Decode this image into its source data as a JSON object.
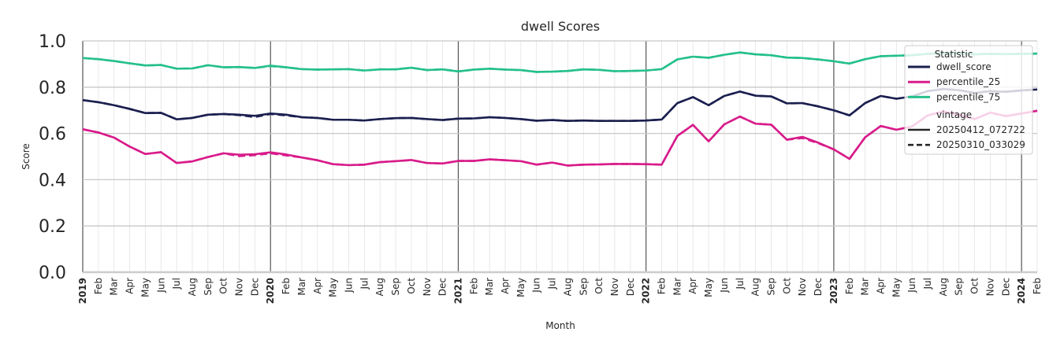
{
  "chart_data": {
    "type": "line",
    "title": "dwell Scores",
    "xlabel": "Month",
    "ylabel": "Score",
    "ylim": [
      0.0,
      1.0
    ],
    "yticks": [
      "0.0",
      "0.2",
      "0.4",
      "0.6",
      "0.8",
      "1.0"
    ],
    "x_range": [
      "2019-01",
      "2024-02"
    ],
    "grid": true,
    "legend_position": "top-right",
    "x": [
      "2019-01",
      "2019-02",
      "2019-03",
      "2019-04",
      "2019-05",
      "2019-06",
      "2019-07",
      "2019-08",
      "2019-09",
      "2019-10",
      "2019-11",
      "2019-12",
      "2020-01",
      "2020-02",
      "2020-03",
      "2020-04",
      "2020-05",
      "2020-06",
      "2020-07",
      "2020-08",
      "2020-09",
      "2020-10",
      "2020-11",
      "2020-12",
      "2021-01",
      "2021-02",
      "2021-03",
      "2021-04",
      "2021-05",
      "2021-06",
      "2021-07",
      "2021-08",
      "2021-09",
      "2021-10",
      "2021-11",
      "2021-12",
      "2022-01",
      "2022-02",
      "2022-03",
      "2022-04",
      "2022-05",
      "2022-06",
      "2022-07",
      "2022-08",
      "2022-09",
      "2022-10",
      "2022-11",
      "2022-12",
      "2023-01",
      "2023-02",
      "2023-03",
      "2023-04",
      "2023-05",
      "2023-06",
      "2023-07",
      "2023-08",
      "2023-09",
      "2023-10",
      "2023-11",
      "2023-12",
      "2024-01",
      "2024-02"
    ],
    "x_tick_labels": [
      "2019",
      "Feb",
      "Mar",
      "Apr",
      "May",
      "Jun",
      "Jul",
      "Aug",
      "Sep",
      "Oct",
      "Nov",
      "Dec",
      "2020",
      "Feb",
      "Mar",
      "Apr",
      "May",
      "Jun",
      "Jul",
      "Aug",
      "Sep",
      "Oct",
      "Nov",
      "Dec",
      "2021",
      "Feb",
      "Mar",
      "Apr",
      "May",
      "Jun",
      "Jul",
      "Aug",
      "Sep",
      "Oct",
      "Nov",
      "Dec",
      "2022",
      "Feb",
      "Mar",
      "Apr",
      "May",
      "Jun",
      "Jul",
      "Aug",
      "Sep",
      "Oct",
      "Nov",
      "Dec",
      "2023",
      "Feb",
      "Mar",
      "Apr",
      "May",
      "Jun",
      "Jul",
      "Aug",
      "Sep",
      "Oct",
      "Nov",
      "Dec",
      "2024",
      "Feb"
    ],
    "legend": {
      "statistic_header": "Statistic",
      "vintage_header": "vintage",
      "statistics": [
        {
          "name": "dwell_score",
          "color": "#1b1f4f"
        },
        {
          "name": "percentile_25",
          "color": "#d81b8a"
        },
        {
          "name": "percentile_75",
          "color": "#25c08a"
        }
      ],
      "vintages": [
        {
          "name": "20250412_072722",
          "dash": "solid"
        },
        {
          "name": "20250310_033029",
          "dash": "dashed"
        }
      ]
    },
    "series": [
      {
        "statistic": "percentile_75",
        "vintage": "20250412_072722",
        "color": "#25c08a",
        "dash": "solid",
        "values": [
          0.926,
          0.921,
          0.913,
          0.903,
          0.894,
          0.896,
          0.88,
          0.881,
          0.895,
          0.886,
          0.887,
          0.883,
          0.893,
          0.886,
          0.878,
          0.876,
          0.877,
          0.878,
          0.872,
          0.877,
          0.877,
          0.884,
          0.874,
          0.877,
          0.868,
          0.876,
          0.88,
          0.876,
          0.874,
          0.866,
          0.867,
          0.87,
          0.877,
          0.875,
          0.869,
          0.87,
          0.872,
          0.878,
          0.92,
          0.932,
          0.927,
          0.94,
          0.95,
          0.942,
          0.938,
          0.928,
          0.926,
          0.92,
          0.912,
          0.902,
          0.921,
          0.934,
          0.936,
          0.938,
          0.944,
          0.947,
          0.946,
          0.942,
          0.944,
          0.943,
          0.944,
          0.945
        ]
      },
      {
        "statistic": "dwell_score",
        "vintage": "20250412_072722",
        "color": "#1b1f4f",
        "dash": "solid",
        "values": [
          0.744,
          0.735,
          0.722,
          0.706,
          0.688,
          0.689,
          0.661,
          0.667,
          0.681,
          0.684,
          0.681,
          0.676,
          0.686,
          0.681,
          0.67,
          0.667,
          0.659,
          0.659,
          0.656,
          0.662,
          0.666,
          0.667,
          0.662,
          0.658,
          0.664,
          0.665,
          0.67,
          0.667,
          0.662,
          0.655,
          0.658,
          0.654,
          0.656,
          0.654,
          0.654,
          0.654,
          0.656,
          0.66,
          0.731,
          0.757,
          0.722,
          0.762,
          0.781,
          0.763,
          0.76,
          0.73,
          0.731,
          0.717,
          0.7,
          0.678,
          0.731,
          0.762,
          0.75,
          0.76,
          0.783,
          0.792,
          0.787,
          0.775,
          0.783,
          0.78,
          0.786,
          0.79
        ]
      },
      {
        "statistic": "percentile_25",
        "vintage": "20250412_072722",
        "color": "#d81b8a",
        "dash": "solid",
        "values": [
          0.618,
          0.604,
          0.582,
          0.543,
          0.511,
          0.519,
          0.472,
          0.479,
          0.498,
          0.514,
          0.508,
          0.51,
          0.518,
          0.509,
          0.496,
          0.484,
          0.467,
          0.463,
          0.465,
          0.476,
          0.48,
          0.485,
          0.472,
          0.47,
          0.481,
          0.481,
          0.488,
          0.484,
          0.48,
          0.465,
          0.474,
          0.461,
          0.465,
          0.466,
          0.468,
          0.468,
          0.467,
          0.465,
          0.589,
          0.637,
          0.566,
          0.639,
          0.673,
          0.642,
          0.638,
          0.573,
          0.585,
          0.56,
          0.531,
          0.49,
          0.583,
          0.632,
          0.616,
          0.63,
          0.678,
          0.695,
          0.681,
          0.662,
          0.69,
          0.675,
          0.686,
          0.698
        ]
      },
      {
        "statistic": "percentile_75",
        "vintage": "20250310_033029",
        "color": "#25c08a",
        "dash": "dashed",
        "values": [
          0.926,
          0.921,
          0.913,
          0.903,
          0.894,
          0.896,
          0.88,
          0.881,
          0.895,
          0.886,
          0.887,
          0.883,
          0.891,
          0.886,
          0.878,
          0.876,
          0.877,
          0.878,
          0.872,
          0.877,
          0.877,
          0.884,
          0.874,
          0.877,
          0.868,
          0.876,
          0.88,
          0.876,
          0.874,
          0.866,
          0.867,
          0.87,
          0.877,
          0.875,
          0.869,
          0.87,
          0.872,
          0.878,
          0.92,
          0.932,
          0.927,
          0.94,
          0.95,
          0.942,
          0.938,
          0.928,
          0.926,
          0.92,
          0.912,
          0.902,
          0.921,
          0.934,
          0.936,
          0.938,
          0.944,
          0.947,
          0.946,
          0.942,
          0.944,
          0.943,
          0.944,
          0.945
        ]
      },
      {
        "statistic": "dwell_score",
        "vintage": "20250310_033029",
        "color": "#1b1f4f",
        "dash": "dashed",
        "values": [
          0.744,
          0.735,
          0.722,
          0.706,
          0.688,
          0.689,
          0.661,
          0.667,
          0.681,
          0.684,
          0.679,
          0.671,
          0.684,
          0.678,
          0.67,
          0.667,
          0.659,
          0.659,
          0.656,
          0.662,
          0.666,
          0.667,
          0.662,
          0.658,
          0.664,
          0.665,
          0.67,
          0.667,
          0.662,
          0.655,
          0.658,
          0.654,
          0.656,
          0.654,
          0.654,
          0.654,
          0.656,
          0.66,
          0.731,
          0.757,
          0.722,
          0.762,
          0.781,
          0.763,
          0.76,
          0.73,
          0.731,
          0.717,
          0.7,
          0.678,
          0.731,
          0.762,
          0.75,
          0.76,
          0.783,
          0.792,
          0.787,
          0.775,
          0.783,
          0.78,
          0.786,
          0.79
        ]
      },
      {
        "statistic": "percentile_25",
        "vintage": "20250310_033029",
        "color": "#d81b8a",
        "dash": "dashed",
        "values": [
          0.618,
          0.604,
          0.582,
          0.543,
          0.511,
          0.519,
          0.472,
          0.479,
          0.498,
          0.514,
          0.502,
          0.506,
          0.514,
          0.505,
          0.496,
          0.484,
          0.467,
          0.463,
          0.465,
          0.476,
          0.48,
          0.485,
          0.472,
          0.47,
          0.481,
          0.481,
          0.488,
          0.484,
          0.48,
          0.465,
          0.474,
          0.461,
          0.465,
          0.466,
          0.468,
          0.468,
          0.467,
          0.465,
          0.589,
          0.637,
          0.566,
          0.639,
          0.673,
          0.642,
          0.638,
          0.573,
          0.58,
          0.558,
          0.531,
          0.49,
          0.583,
          0.632,
          0.616,
          0.63,
          0.678,
          0.695,
          0.681,
          0.662,
          0.69,
          0.675,
          0.686,
          0.698
        ]
      }
    ]
  }
}
